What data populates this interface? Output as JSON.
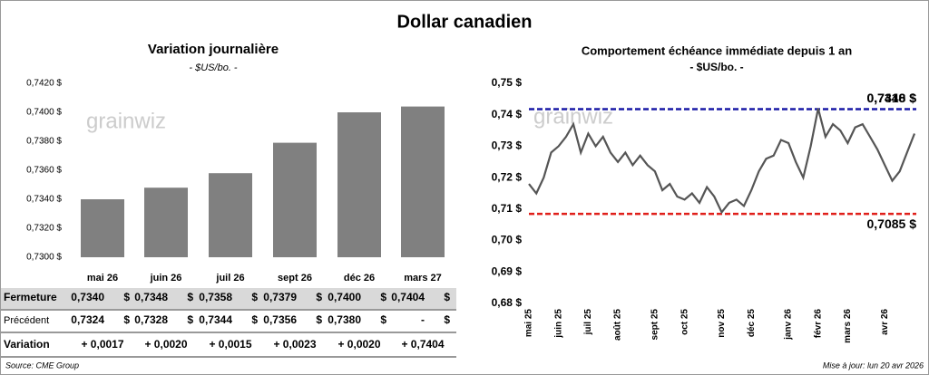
{
  "title": "Dollar canadien",
  "watermark": "grainwiz",
  "chart_data": [
    {
      "type": "bar",
      "title": "Variation journalière",
      "subtitle": "- $US/bo. -",
      "categories": [
        "mai 26",
        "juin 26",
        "juil 26",
        "sept 26",
        "déc 26",
        "mars 27"
      ],
      "values": [
        0.734,
        0.7348,
        0.7358,
        0.7379,
        0.74,
        0.7404
      ],
      "color": "#808080",
      "ylim": [
        0.73,
        0.742
      ],
      "yticks": [
        {
          "value": 0.73,
          "label": "0,7300 $"
        },
        {
          "value": 0.732,
          "label": "0,7320 $"
        },
        {
          "value": 0.734,
          "label": "0,7340 $"
        },
        {
          "value": 0.736,
          "label": "0,7360 $"
        },
        {
          "value": 0.738,
          "label": "0,7380 $"
        },
        {
          "value": 0.74,
          "label": "0,7400 $"
        },
        {
          "value": 0.742,
          "label": "0,7420 $"
        }
      ]
    },
    {
      "type": "line",
      "title": "Comportement échéance immédiate depuis 1 an",
      "subtitle": "- $US/bo. -",
      "categories": [
        "mai 25",
        null,
        null,
        null,
        "juin 25",
        null,
        null,
        null,
        "juil 25",
        null,
        null,
        null,
        "août 25",
        null,
        null,
        null,
        null,
        "sept 25",
        null,
        null,
        null,
        "oct 25",
        null,
        null,
        null,
        null,
        "nov 25",
        null,
        null,
        null,
        "déc 25",
        null,
        null,
        null,
        null,
        "janv 26",
        null,
        null,
        null,
        "févr 26",
        null,
        null,
        null,
        "mars 26",
        null,
        null,
        null,
        null,
        "avr 26",
        null,
        null,
        null,
        null
      ],
      "series": [
        {
          "color": "#555555",
          "values": [
            0.718,
            0.715,
            0.72,
            0.728,
            0.73,
            0.733,
            0.737,
            0.728,
            0.734,
            0.73,
            0.733,
            0.728,
            0.725,
            0.728,
            0.724,
            0.727,
            0.724,
            0.722,
            0.716,
            0.718,
            0.714,
            0.713,
            0.715,
            0.712,
            0.717,
            0.714,
            0.709,
            0.712,
            0.713,
            0.711,
            0.716,
            0.722,
            0.726,
            0.727,
            0.732,
            0.731,
            0.725,
            0.72,
            0.73,
            0.742,
            0.733,
            0.737,
            0.735,
            0.731,
            0.736,
            0.737,
            0.733,
            0.729,
            0.724,
            0.719,
            0.722,
            0.728,
            0.734
          ]
        }
      ],
      "ylim": [
        0.68,
        0.75
      ],
      "yticks": [
        {
          "value": 0.68,
          "label": "0,68 $"
        },
        {
          "value": 0.69,
          "label": "0,69 $"
        },
        {
          "value": 0.7,
          "label": "0,70 $"
        },
        {
          "value": 0.71,
          "label": "0,71 $"
        },
        {
          "value": 0.72,
          "label": "0,72 $"
        },
        {
          "value": 0.73,
          "label": "0,73 $"
        },
        {
          "value": 0.74,
          "label": "0,74 $"
        },
        {
          "value": 0.75,
          "label": "0,75 $"
        }
      ],
      "reference_lines": [
        {
          "value": 0.7418,
          "label": "0,7418 $",
          "color": "#1a1aa6"
        },
        {
          "value": 0.7085,
          "label": "0,7085 $",
          "color": "#e0201b"
        }
      ],
      "last_label": "0,7340 $"
    }
  ],
  "table": {
    "rows": [
      {
        "label": "Fermeture",
        "cells": [
          "0,7340",
          "0,7348",
          "0,7358",
          "0,7379",
          "0,7400",
          "0,7404"
        ],
        "unit": "$"
      },
      {
        "label": "Précédent",
        "cells": [
          "0,7324",
          "0,7328",
          "0,7344",
          "0,7356",
          "0,7380",
          "-"
        ],
        "unit": "$"
      },
      {
        "label": "Variation",
        "cells": [
          "+ 0,0017",
          "+ 0,0020",
          "+ 0,0015",
          "+ 0,0023",
          "+ 0,0020",
          "+ 0,7404"
        ]
      }
    ]
  },
  "source": "Source: CME Group",
  "updated": "Mise à jour: lun 20 avr 2026"
}
